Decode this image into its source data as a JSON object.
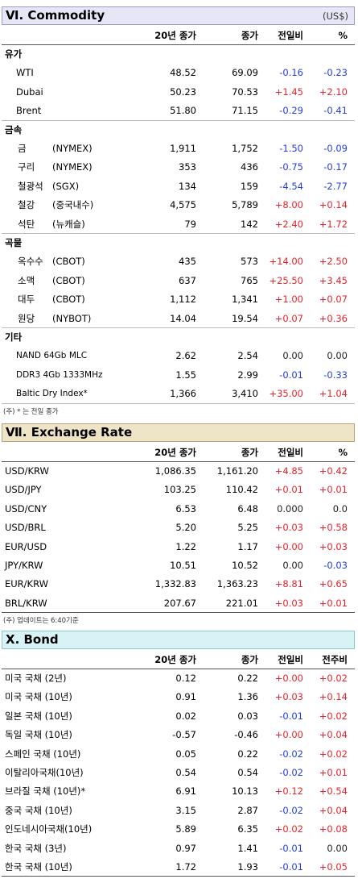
{
  "colors": {
    "up": "#e2262d",
    "down": "#2440d6",
    "text": "#222222"
  },
  "sections": [
    {
      "title": "Ⅵ. Commodity",
      "unit": "(US$)",
      "bg": "#e6e6f6",
      "border": "#9a9ac8",
      "columns": [
        "20년 종가",
        "종가",
        "전일비",
        "%"
      ],
      "groups": [
        {
          "label": "유가",
          "rows": [
            {
              "name": "WTI",
              "values": [
                "48.52",
                "69.09",
                "-0.16",
                "-0.23"
              ]
            },
            {
              "name": "Dubai",
              "values": [
                "50.23",
                "70.53",
                "+1.45",
                "+2.10"
              ]
            },
            {
              "name": "Brent",
              "values": [
                "51.80",
                "71.15",
                "-0.29",
                "-0.41"
              ]
            }
          ]
        },
        {
          "label": "금속",
          "rows": [
            {
              "name": "금",
              "market": "(NYMEX)",
              "values": [
                "1,911",
                "1,752",
                "-1.50",
                "-0.09"
              ]
            },
            {
              "name": "구리",
              "market": "(NYMEX)",
              "values": [
                "353",
                "436",
                "-0.75",
                "-0.17"
              ]
            },
            {
              "name": "철광석",
              "market": "(SGX)",
              "values": [
                "134",
                "159",
                "-4.54",
                "-2.77"
              ]
            },
            {
              "name": "철강",
              "market": "(중국내수)",
              "values": [
                "4,575",
                "5,789",
                "+8.00",
                "+0.14"
              ]
            },
            {
              "name": "석탄",
              "market": "(뉴캐슬)",
              "values": [
                "79",
                "142",
                "+2.40",
                "+1.72"
              ]
            }
          ]
        },
        {
          "label": "곡물",
          "rows": [
            {
              "name": "옥수수",
              "market": "(CBOT)",
              "values": [
                "435",
                "573",
                "+14.00",
                "+2.50"
              ]
            },
            {
              "name": "소맥",
              "market": "(CBOT)",
              "values": [
                "637",
                "765",
                "+25.50",
                "+3.45"
              ]
            },
            {
              "name": "대두",
              "market": "(CBOT)",
              "values": [
                "1,112",
                "1,341",
                "+1.00",
                "+0.07"
              ]
            },
            {
              "name": "원당",
              "market": "(NYBOT)",
              "values": [
                "14.04",
                "19.54",
                "+0.07",
                "+0.36"
              ]
            }
          ]
        },
        {
          "label": "기타",
          "rows": [
            {
              "name": "NAND 64Gb MLC",
              "values": [
                "2.62",
                "2.54",
                "0.00",
                "0.00"
              ]
            },
            {
              "name": "DDR3 4Gb 1333MHz",
              "values": [
                "1.55",
                "2.99",
                "-0.01",
                "-0.33"
              ]
            },
            {
              "name": "Baltic Dry Index*",
              "values": [
                "1,366",
                "3,410",
                "+35.00",
                "+1.04"
              ]
            }
          ]
        }
      ],
      "note": "(주) * 는 전일 종가"
    },
    {
      "title": "Ⅶ. Exchange Rate",
      "bg": "#eee4c8",
      "border": "#b8a574",
      "columns": [
        "20년 종가",
        "종가",
        "전일비",
        "%"
      ],
      "groups": [
        {
          "rows": [
            {
              "name": "USD/KRW",
              "values": [
                "1,086.35",
                "1,161.20",
                "+4.85",
                "+0.42"
              ]
            },
            {
              "name": "USD/JPY",
              "values": [
                "103.25",
                "110.42",
                "+0.01",
                "+0.01"
              ]
            },
            {
              "name": "USD/CNY",
              "values": [
                "6.53",
                "6.48",
                "0.000",
                "0.0"
              ]
            },
            {
              "name": "USD/BRL",
              "values": [
                "5.20",
                "5.25",
                "+0.03",
                "+0.58"
              ]
            },
            {
              "name": "EUR/USD",
              "values": [
                "1.22",
                "1.17",
                "+0.00",
                "+0.03"
              ]
            },
            {
              "name": "JPY/KRW",
              "values": [
                "10.51",
                "10.52",
                "0.00",
                "-0.03"
              ]
            },
            {
              "name": "EUR/KRW",
              "values": [
                "1,332.83",
                "1,363.23",
                "+8.81",
                "+0.65"
              ]
            },
            {
              "name": "BRL/KRW",
              "values": [
                "207.67",
                "221.01",
                "+0.03",
                "+0.01"
              ]
            }
          ]
        }
      ],
      "note": "(주) 업데이트는 6:40기준"
    },
    {
      "title": "Ⅹ. Bond",
      "bg": "#d8f3f6",
      "border": "#8cc8d0",
      "columns": [
        "20년 종가",
        "종가",
        "전일비",
        "전주비"
      ],
      "groups": [
        {
          "rows": [
            {
              "name": "미국 국채 (2년)",
              "values": [
                "0.12",
                "0.22",
                "+0.00",
                "+0.02"
              ]
            },
            {
              "name": "미국 국채 (10년)",
              "values": [
                "0.91",
                "1.36",
                "+0.03",
                "+0.14"
              ]
            },
            {
              "name": "일본 국채 (10년)",
              "values": [
                "0.02",
                "0.03",
                "-0.01",
                "+0.02"
              ]
            },
            {
              "name": "독일 국채 (10년)",
              "values": [
                "-0.57",
                "-0.46",
                "+0.00",
                "+0.04"
              ]
            },
            {
              "name": "스페인 국채 (10년)",
              "values": [
                "0.05",
                "0.22",
                "-0.02",
                "+0.02"
              ]
            },
            {
              "name": "이탈리아국채(10년)",
              "values": [
                "0.54",
                "0.54",
                "-0.02",
                "+0.01"
              ]
            },
            {
              "name": "브라질 국채 (10년)*",
              "values": [
                "6.91",
                "10.13",
                "+0.12",
                "+0.54"
              ]
            },
            {
              "name": "중국 국채 (10년)",
              "values": [
                "3.15",
                "2.87",
                "-0.02",
                "+0.04"
              ]
            },
            {
              "name": "인도네시아국채(10년)",
              "values": [
                "5.89",
                "6.35",
                "+0.02",
                "+0.08"
              ]
            },
            {
              "name": "한국 국채 (3년)",
              "values": [
                "0.97",
                "1.41",
                "-0.01",
                "0.00"
              ]
            },
            {
              "name": "한국 국채 (10년)",
              "values": [
                "1.72",
                "1.93",
                "-0.01",
                "+0.05"
              ]
            }
          ]
        }
      ]
    }
  ]
}
